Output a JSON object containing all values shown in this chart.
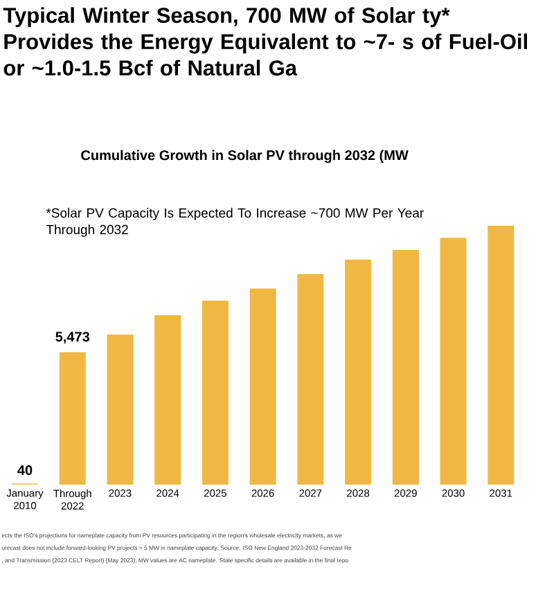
{
  "chart_data": {
    "type": "bar",
    "title": "Typical Winter Season, 700 MW of Solar ty* Provides the Energy Equivalent to ~7- s of Fuel-Oil or ~1.0-1.5 Bcf of Natural Ga",
    "subtitle": "Cumulative Growth in Solar PV through 2032 (MW",
    "categories": [
      "January 2010",
      "Through 2022",
      "2023",
      "2024",
      "2025",
      "2026",
      "2027",
      "2028",
      "2029",
      "2030",
      "2031"
    ],
    "values": [
      40,
      5473,
      6200,
      7000,
      7600,
      8100,
      8700,
      9300,
      9700,
      10200,
      10700
    ],
    "value_labels": [
      "40",
      "5,473",
      null,
      null,
      null,
      null,
      null,
      null,
      null,
      null,
      null
    ],
    "color": "#f0b843",
    "annotations": [
      "*Solar PV Capacity Is Expected To Increase ~700 MW Per Year Through 2032",
      "ects the ISO's projections for nameplate capacity from PV resources participating in the region's wholesale electricity markets, as we",
      "orecast does not include forward-looking PV projects > 5 MW in nameplate capacity. Source: ISO New England 2023-2032 Forecast Re",
      ", and Transmission (2023 CELT Report) (May 2023); MW values are AC nameplate. State specific details are available in the final repo"
    ]
  }
}
